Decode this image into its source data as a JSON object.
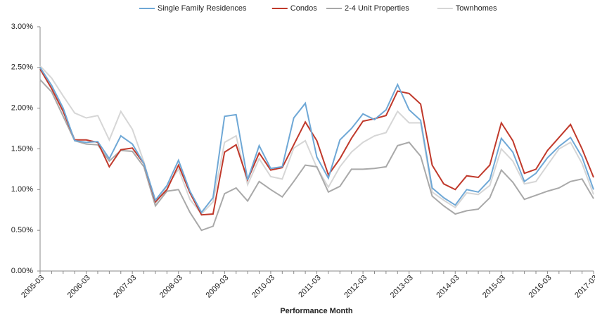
{
  "chart_data": {
    "type": "line",
    "x_label": "Performance Month",
    "categories": [
      "2005-03",
      null,
      null,
      null,
      "2006-03",
      null,
      null,
      null,
      "2007-03",
      null,
      null,
      null,
      "2008-03",
      null,
      null,
      null,
      "2009-03",
      null,
      null,
      null,
      "2010-03",
      null,
      null,
      null,
      "2011-03",
      null,
      null,
      null,
      "2012-03",
      null,
      null,
      null,
      "2013-03",
      null,
      null,
      null,
      "2014-03",
      null,
      null,
      null,
      "2015-03",
      null,
      null,
      null,
      "2016-03",
      null,
      null,
      null,
      "2017-03"
    ],
    "series": [
      {
        "name": "Single Family Residences",
        "color": "#6fa8d6",
        "values": [
          2.5,
          2.28,
          2.0,
          1.6,
          1.58,
          1.59,
          1.38,
          1.66,
          1.56,
          1.32,
          0.87,
          1.05,
          1.36,
          0.98,
          0.72,
          0.9,
          1.9,
          1.92,
          1.12,
          1.54,
          1.26,
          1.28,
          1.88,
          2.06,
          1.4,
          1.14,
          1.61,
          1.75,
          1.93,
          1.86,
          1.98,
          2.29,
          1.98,
          1.85,
          1.02,
          0.9,
          0.81,
          1.0,
          0.97,
          1.12,
          1.63,
          1.46,
          1.1,
          1.2,
          1.39,
          1.53,
          1.64,
          1.4,
          1.0
        ]
      },
      {
        "name": "Condos",
        "color": "#c0392b",
        "values": [
          2.48,
          2.24,
          1.96,
          1.61,
          1.61,
          1.58,
          1.28,
          1.49,
          1.51,
          1.32,
          0.85,
          1.0,
          1.3,
          0.96,
          0.69,
          0.7,
          1.46,
          1.55,
          1.12,
          1.45,
          1.24,
          1.27,
          1.55,
          1.83,
          1.6,
          1.18,
          1.38,
          1.63,
          1.84,
          1.87,
          1.91,
          2.21,
          2.18,
          2.05,
          1.3,
          1.07,
          1.0,
          1.17,
          1.15,
          1.3,
          1.82,
          1.6,
          1.2,
          1.25,
          1.48,
          1.64,
          1.8,
          1.5,
          1.15
        ]
      },
      {
        "name": "2-4 Unit Properties",
        "color": "#a9a9a9",
        "values": [
          2.35,
          2.2,
          1.9,
          1.6,
          1.56,
          1.55,
          1.35,
          1.48,
          1.47,
          1.28,
          0.8,
          0.98,
          1.0,
          0.72,
          0.5,
          0.55,
          0.95,
          1.02,
          0.86,
          1.1,
          1.0,
          0.91,
          1.1,
          1.3,
          1.28,
          0.97,
          1.04,
          1.25,
          1.25,
          1.26,
          1.28,
          1.54,
          1.58,
          1.41,
          0.92,
          0.8,
          0.7,
          0.74,
          0.76,
          0.9,
          1.24,
          1.09,
          0.88,
          0.93,
          0.98,
          1.02,
          1.1,
          1.13,
          0.89
        ]
      },
      {
        "name": "Townhomes",
        "color": "#d6d6d6",
        "values": [
          2.52,
          2.37,
          2.15,
          1.94,
          1.88,
          1.91,
          1.61,
          1.96,
          1.74,
          1.34,
          0.83,
          1.04,
          1.25,
          0.88,
          0.7,
          0.85,
          1.58,
          1.66,
          1.06,
          1.38,
          1.16,
          1.13,
          1.51,
          1.6,
          1.27,
          1.03,
          1.28,
          1.46,
          1.58,
          1.66,
          1.7,
          1.96,
          1.82,
          1.82,
          0.97,
          0.87,
          0.78,
          0.96,
          0.94,
          1.05,
          1.5,
          1.35,
          1.07,
          1.1,
          1.3,
          1.5,
          1.58,
          1.32,
          0.94
        ]
      }
    ],
    "ylim": [
      0,
      3
    ],
    "yticks": [
      {
        "value": 0,
        "label": "0.00%"
      },
      {
        "value": 0.5,
        "label": "0.50%"
      },
      {
        "value": 1,
        "label": "1.00%"
      },
      {
        "value": 1.5,
        "label": "1.50%"
      },
      {
        "value": 2,
        "label": "2.00%"
      },
      {
        "value": 2.5,
        "label": "2.50%"
      },
      {
        "value": 3,
        "label": "3.00%"
      }
    ],
    "grid": false,
    "legend": "top"
  }
}
